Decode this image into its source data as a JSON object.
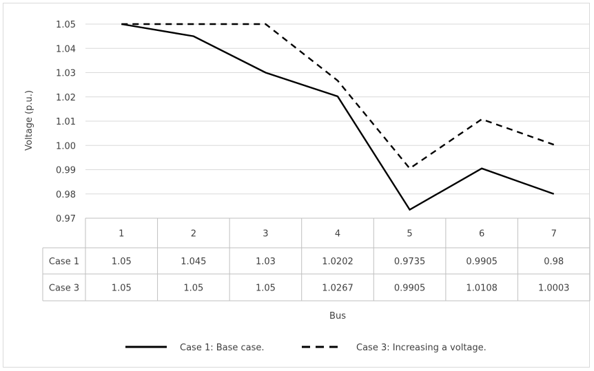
{
  "chart_data": {
    "type": "line",
    "categories": [
      "1",
      "2",
      "3",
      "4",
      "5",
      "6",
      "7"
    ],
    "series": [
      {
        "name": "Case 1",
        "values": [
          1.05,
          1.045,
          1.03,
          1.0202,
          0.9735,
          0.9905,
          0.98
        ],
        "style": "solid",
        "color": "#000000"
      },
      {
        "name": "Case 3",
        "values": [
          1.05,
          1.05,
          1.05,
          1.0267,
          0.9905,
          1.0108,
          1.0003
        ],
        "style": "dashed",
        "color": "#000000"
      }
    ],
    "table_values": [
      [
        "1.05",
        "1.045",
        "1.03",
        "1.0202",
        "0.9735",
        "0.9905",
        "0.98"
      ],
      [
        "1.05",
        "1.05",
        "1.05",
        "1.0267",
        "0.9905",
        "1.0108",
        "1.0003"
      ]
    ],
    "ylim": [
      0.97,
      1.05
    ],
    "yticks": [
      "1.05",
      "1.04",
      "1.03",
      "1.02",
      "1.01",
      "1.00",
      "0.99",
      "0.98",
      "0.97"
    ],
    "ylabel": "Voltage (p.u.)",
    "xlabel": "Bus",
    "grid": true,
    "legend": {
      "placement": "bottom",
      "items": [
        "Case 1: Base case.",
        "Case 3: Increasing a voltage."
      ]
    },
    "colors": {
      "grid": "#d9d9d9",
      "table_border": "#bfbfbf",
      "text": "#404040"
    }
  }
}
